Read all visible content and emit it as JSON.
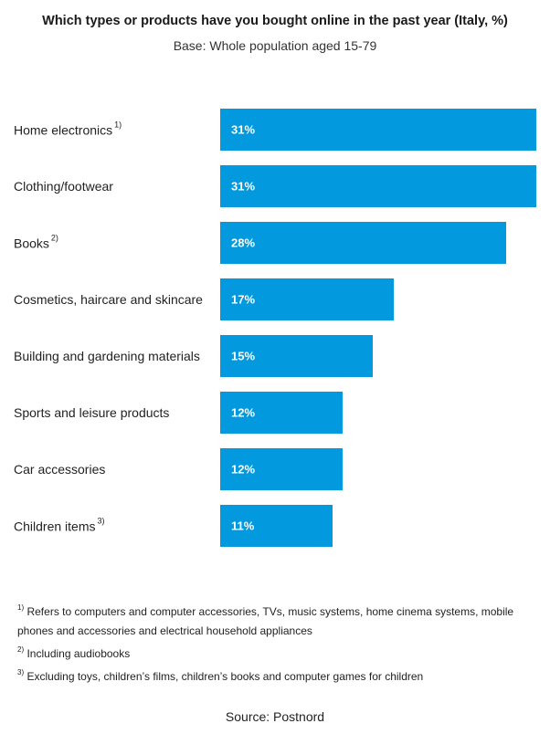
{
  "chart_data": {
    "type": "bar",
    "orientation": "horizontal",
    "title": "Which types or products have you bought online in the past year (Italy, %)",
    "subtitle": "Base: Whole population aged 15-79",
    "categories": [
      "Home electronics",
      "Clothing/footwear",
      "Books",
      "Cosmetics, haircare and skincare",
      "Building and gardening materials",
      "Sports and leisure products",
      "Car accessories",
      "Children items"
    ],
    "category_notes": [
      "1)",
      "",
      "2)",
      "",
      "",
      "",
      "",
      "3)"
    ],
    "values": [
      31,
      31,
      28,
      17,
      15,
      12,
      12,
      11
    ],
    "value_labels": [
      "31%",
      "31%",
      "28%",
      "17%",
      "15%",
      "12%",
      "12%",
      "11%"
    ],
    "xlim": [
      0,
      31
    ],
    "bar_color": "#0399de",
    "label_color": "#ffffff"
  },
  "footnotes": [
    {
      "mark": "1)",
      "text": "Refers to computers and computer accessories, TVs, music systems, home cinema systems, mobile phones  and accessories and electrical household appliances"
    },
    {
      "mark": "2)",
      "text": "Including audiobooks"
    },
    {
      "mark": "3)",
      "text": "Excluding toys, children’s films, children’s books and computer games for children"
    }
  ],
  "source": "Source: Postnord"
}
